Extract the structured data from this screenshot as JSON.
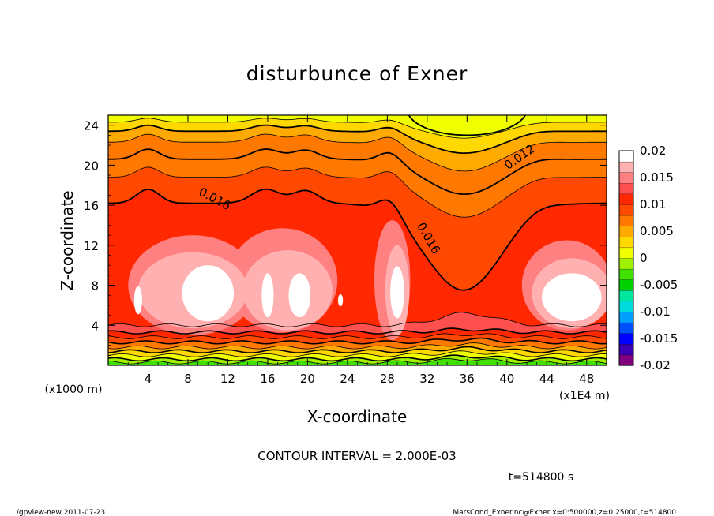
{
  "chart_data": {
    "type": "heatmap",
    "title": "disturbunce of Exner",
    "xlabel": "X-coordinate",
    "ylabel": "Z-coordinate",
    "x_unit": "(x1E4 m)",
    "y_unit": "(x1000 m)",
    "xlim": [
      0,
      50
    ],
    "ylim": [
      0,
      25
    ],
    "x_ticks": [
      4,
      8,
      12,
      16,
      20,
      24,
      28,
      32,
      36,
      40,
      44,
      48
    ],
    "y_ticks": [
      4,
      8,
      12,
      16,
      20,
      24
    ],
    "colorbar": {
      "range": [
        -0.02,
        0.02
      ],
      "labels": [
        "0.02",
        "0.015",
        "0.01",
        "0.005",
        "0",
        "-0.005",
        "-0.01",
        "-0.015",
        "-0.02"
      ],
      "colors": [
        "#800080",
        "#3c00b4",
        "#0000ff",
        "#0050ff",
        "#00a0ff",
        "#00dcdc",
        "#00e8a0",
        "#00d000",
        "#40e000",
        "#a0f000",
        "#f0ff00",
        "#ffd800",
        "#ffaa00",
        "#ff7800",
        "#ff4800",
        "#ff2800",
        "#ff5050",
        "#ff8080",
        "#ffb0b0",
        "#ffffff"
      ]
    },
    "contour_labels": [
      {
        "text": "0.016",
        "x": 10.5,
        "z": 16.3
      },
      {
        "text": "0.012",
        "x": 41.5,
        "z": 20.5
      },
      {
        "text": "0.016",
        "x": 31.8,
        "z": 12.5
      }
    ],
    "contour_interval_text": "CONTOUR INTERVAL = 2.000E-03",
    "time_text": "t=514800 s"
  },
  "footer": {
    "left": "./gpview-new  2011-07-23",
    "right": "MarsCond_Exner.nc@Exner,x=0:500000,z=0:25000,t=514800"
  }
}
